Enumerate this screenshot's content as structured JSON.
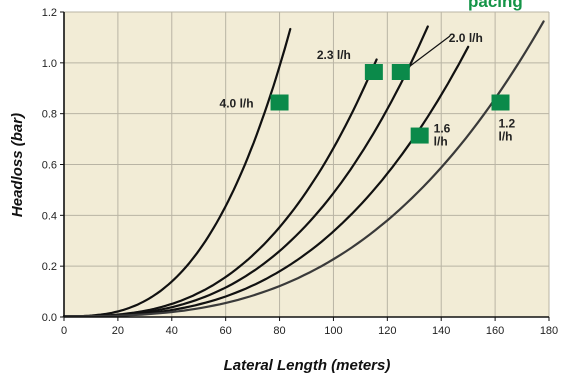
{
  "colors": {
    "plot_background": "#f2ecd6",
    "grid": "#b9b4a4",
    "axis": "#111111",
    "curve": "#111111",
    "curve_light": "#3a3a3a",
    "marker": "#0b8a4a",
    "title_fragment": "#149447"
  },
  "title_fragment": "pacing",
  "chart_data": {
    "type": "line",
    "xlabel": "Lateral Length (meters)",
    "ylabel": "Headloss (bar)",
    "xlim": [
      0,
      180
    ],
    "ylim": [
      0,
      1.2
    ],
    "x_ticks": [
      0,
      20,
      40,
      60,
      80,
      100,
      120,
      140,
      160,
      180
    ],
    "y_ticks": [
      0.0,
      0.2,
      0.4,
      0.6,
      0.8,
      1.0,
      1.2
    ],
    "x_tick_labels": [
      "0",
      "20",
      "40",
      "60",
      "80",
      "100",
      "120",
      "140",
      "160",
      "180"
    ],
    "y_tick_labels": [
      "0.0",
      "0.2",
      "0.4",
      "0.6",
      "0.8",
      "1.0",
      "1.2"
    ],
    "grid": true,
    "series": [
      {
        "name": "4.0 l/h",
        "label_lines": [
          "4.0 l/h"
        ],
        "exponent": 2.85,
        "x": [
          0,
          10,
          20,
          30,
          40,
          50,
          60,
          70,
          80,
          84
        ],
        "y": [
          0.0,
          0.003,
          0.021,
          0.064,
          0.143,
          0.27,
          0.45,
          0.7,
          0.98,
          1.13
        ],
        "marker": [
          80,
          0.84
        ]
      },
      {
        "name": "2.3 l/h",
        "label_lines": [
          "2.3 l/h"
        ],
        "exponent": 2.85,
        "x": [
          0,
          20,
          40,
          60,
          80,
          100,
          116
        ],
        "y": [
          0.0,
          0.012,
          0.074,
          0.235,
          0.45,
          0.73,
          1.01
        ],
        "marker": [
          115,
          0.96
        ]
      },
      {
        "name": "2.0 l/h",
        "label_lines": [
          "2.0 l/h"
        ],
        "exponent": 2.85,
        "x": [
          0,
          20,
          40,
          60,
          80,
          100,
          120,
          135
        ],
        "y": [
          0.0,
          0.008,
          0.056,
          0.17,
          0.38,
          0.63,
          0.93,
          1.14
        ],
        "marker": [
          125,
          0.96
        ]
      },
      {
        "name": "1.6 l/h",
        "label_lines": [
          "1.6",
          "l/h"
        ],
        "exponent": 2.85,
        "x": [
          0,
          20,
          40,
          60,
          80,
          100,
          120,
          140,
          150
        ],
        "y": [
          0.0,
          0.006,
          0.036,
          0.115,
          0.25,
          0.44,
          0.71,
          1.04,
          1.06
        ],
        "marker": [
          132,
          0.71
        ]
      },
      {
        "name": "1.2 l/h",
        "label_lines": [
          "1.2",
          "l/h"
        ],
        "exponent": 2.85,
        "x": [
          0,
          20,
          40,
          60,
          80,
          100,
          120,
          140,
          160,
          178
        ],
        "y": [
          0.0,
          0.003,
          0.02,
          0.065,
          0.15,
          0.26,
          0.42,
          0.62,
          0.87,
          1.16
        ],
        "marker": [
          162,
          0.84
        ]
      }
    ]
  }
}
